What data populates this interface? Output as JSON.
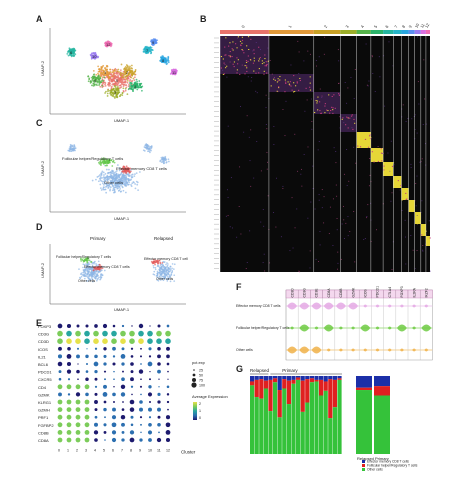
{
  "panels": {
    "a": {
      "label": "A",
      "xaxis": "UMAP-1",
      "yaxis": "UMAP-2",
      "cluster_numbers": [
        "0",
        "1",
        "2",
        "3",
        "4",
        "5",
        "6",
        "7",
        "8",
        "9",
        "10",
        "11",
        "12"
      ]
    },
    "b": {
      "label": "B",
      "clusters": [
        "0",
        "1",
        "2",
        "3",
        "4",
        "5",
        "6",
        "7",
        "8",
        "9",
        "10",
        "11",
        "12"
      ],
      "cluster_colors": [
        "#e8736b",
        "#e29a3a",
        "#c9a227",
        "#9cae2a",
        "#55b34a",
        "#2bb36a",
        "#25b5a0",
        "#26b4c8",
        "#2aa6e0",
        "#5b8ff0",
        "#9b7cf0",
        "#d96fe0",
        "#ef6db3"
      ]
    },
    "c": {
      "label": "C",
      "xaxis": "UMAP-1",
      "yaxis": "UMAP-2",
      "annotations": [
        "Follicular helper/Regulatory T cells",
        "Effector memory CD8 T cells",
        "Other cells"
      ]
    },
    "d": {
      "label": "D",
      "titles": [
        "Primary",
        "Relapsed"
      ],
      "xaxis": "UMAP-1",
      "yaxis": "UMAP-2",
      "annotations_primary": [
        "Follicular helper/Regulatory T cells",
        "Effector memory CD8 T cells",
        "Other cells"
      ],
      "annotations_relapsed": [
        "Effector memory CD8 T cell",
        "Other cells"
      ]
    },
    "e": {
      "label": "E",
      "genes": [
        "FOXP3",
        "CD3G",
        "CD3D",
        "ICOS",
        "IL21",
        "BCL6",
        "PDCD1",
        "CXCR5",
        "CD4",
        "GZMK",
        "KLRG1",
        "GZMH",
        "PRF1",
        "FGFBP2",
        "CD8B",
        "CD8A"
      ],
      "legend_title_pct": "pct.exp",
      "pct_levels": [
        "25",
        "50",
        "75",
        "100"
      ],
      "legend_title_avg": "Average Expression",
      "avg_levels": [
        "2",
        "1",
        "0"
      ],
      "xlabel": "Cluster"
    },
    "f": {
      "label": "F",
      "genes": [
        "CD3D",
        "CD3G",
        "CD3E",
        "CD8A",
        "CD8B",
        "GZMK",
        "ICOS",
        "PDCD1",
        "CTLA4",
        "FOXP3",
        "IL2RA",
        "IKZF2"
      ],
      "groups": [
        "Effector memory CD8 T cells",
        "Follicular helper/Regulatory T cells",
        "Other cells"
      ],
      "group_colors": [
        "#e4a9e4",
        "#6fcb43",
        "#f0b24a"
      ]
    },
    "g": {
      "label": "G",
      "groups": [
        "Relapsed",
        "Primary"
      ],
      "legend": [
        "Effector memory CD8 T cells",
        "Follicular helper/Regulatory T cells",
        "Other cells"
      ],
      "colors": [
        "#1c2fa8",
        "#e02020",
        "#35c23a"
      ],
      "bar_groups": [
        "Relapsed",
        "Primary"
      ]
    }
  },
  "chart_data": [
    {
      "type": "bar",
      "title": "",
      "stacked": true,
      "categories": [
        "R1",
        "R2",
        "R3",
        "R4",
        "P1",
        "P2",
        "P3",
        "P4",
        "P5",
        "P6",
        "P7",
        "P8",
        "P9",
        "P10",
        "P11",
        "P12",
        "P13",
        "P14",
        "P15",
        "P16"
      ],
      "series": [
        {
          "name": "Effector memory CD8 T cells",
          "values": [
            0.07,
            0.05,
            0.04,
            0.06,
            0.05,
            0.03,
            0.18,
            0.04,
            0.06,
            0.05,
            0.02,
            0.06,
            0.04,
            0.03,
            0.05,
            0.05,
            0.07,
            0.04,
            0.05,
            0.03
          ]
        },
        {
          "name": "Follicular helper/Regulatory T cells",
          "values": [
            0.05,
            0.22,
            0.25,
            0.1,
            0.4,
            0.05,
            0.35,
            0.12,
            0.3,
            0.05,
            0.03,
            0.4,
            0.3,
            0.05,
            0.02,
            0.2,
            0.12,
            0.5,
            0.35,
            0.02
          ]
        },
        {
          "name": "Other cells",
          "values": [
            0.88,
            0.73,
            0.71,
            0.84,
            0.55,
            0.92,
            0.47,
            0.84,
            0.64,
            0.9,
            0.95,
            0.54,
            0.66,
            0.92,
            0.93,
            0.75,
            0.81,
            0.46,
            0.6,
            0.95
          ]
        }
      ]
    },
    {
      "type": "bar",
      "title": "",
      "stacked": true,
      "categories": [
        "Relapsed",
        "Primary"
      ],
      "series": [
        {
          "name": "Effector memory CD8 T cells",
          "values": [
            0.15,
            0.13
          ]
        },
        {
          "name": "Follicular helper/Regulatory T cells",
          "values": [
            0.03,
            0.12
          ]
        },
        {
          "name": "Other cells",
          "values": [
            0.82,
            0.75
          ]
        }
      ]
    }
  ]
}
